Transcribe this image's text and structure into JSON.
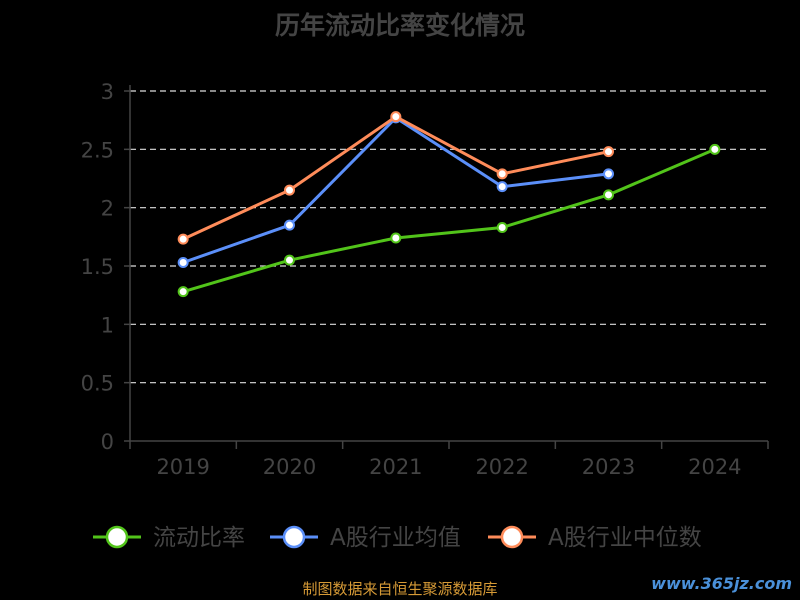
{
  "chart_data": {
    "type": "line",
    "title": "历年流动比率变化情况",
    "categories": [
      "2019",
      "2020",
      "2021",
      "2022",
      "2023",
      "2024"
    ],
    "ylim": [
      0,
      3
    ],
    "yticks": [
      "0",
      "0.5",
      "1",
      "1.5",
      "2",
      "2.5",
      "3"
    ],
    "grid": true,
    "legend_position": "bottom",
    "series": [
      {
        "name": "流动比率",
        "color": "#52c41a",
        "values": [
          1.28,
          1.55,
          1.74,
          1.83,
          2.11,
          2.5
        ]
      },
      {
        "name": "A股行业均值",
        "color": "#5b8ff9",
        "values": [
          1.53,
          1.85,
          2.77,
          2.18,
          2.29,
          null
        ]
      },
      {
        "name": "A股行业中位数",
        "color": "#ff8c5a",
        "values": [
          1.73,
          2.15,
          2.78,
          2.29,
          2.48,
          null
        ]
      }
    ]
  },
  "source_note": "制图数据来自恒生聚源数据库",
  "watermark": "www.365jz.com",
  "colors": {
    "background": "#000000",
    "axis": "#444444",
    "grid": "#dddddd"
  }
}
